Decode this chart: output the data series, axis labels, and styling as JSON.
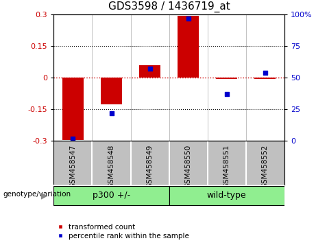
{
  "title": "GDS3598 / 1436719_at",
  "samples": [
    "GSM458547",
    "GSM458548",
    "GSM458549",
    "GSM458550",
    "GSM458551",
    "GSM458552"
  ],
  "red_values": [
    -0.295,
    -0.125,
    0.06,
    0.295,
    -0.005,
    -0.005
  ],
  "blue_values": [
    2,
    22,
    57,
    97,
    37,
    54
  ],
  "ylim_left": [
    -0.3,
    0.3
  ],
  "ylim_right": [
    0,
    100
  ],
  "yticks_left": [
    -0.3,
    -0.15,
    0,
    0.15,
    0.3
  ],
  "yticks_right": [
    0,
    25,
    50,
    75,
    100
  ],
  "ytick_labels_left": [
    "-0.3",
    "-0.15",
    "0",
    "0.15",
    "0.3"
  ],
  "ytick_labels_right": [
    "0",
    "25",
    "50",
    "75",
    "100%"
  ],
  "group_label_prefix": "genotype/variation",
  "red_color": "#CC0000",
  "blue_color": "#0000CC",
  "bar_width": 0.55,
  "background_color": "#ffffff",
  "plot_bg_color": "#ffffff",
  "hline_color": "#CC0000",
  "dotted_color": "#000000",
  "sample_box_color": "#C0C0C0",
  "group_colors": [
    "#90EE90",
    "#90EE90"
  ],
  "group_labels": [
    "p300 +/-",
    "wild-type"
  ],
  "group_boundaries": [
    0,
    3,
    6
  ],
  "legend_red_label": "transformed count",
  "legend_blue_label": "percentile rank within the sample",
  "title_fontsize": 11
}
